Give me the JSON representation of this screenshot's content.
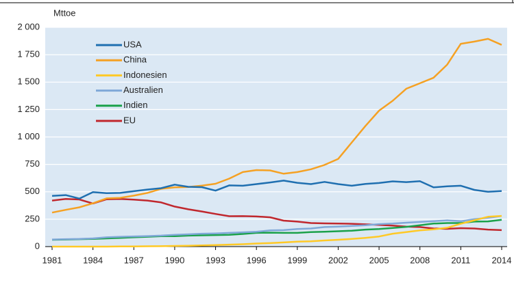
{
  "chart_data": {
    "type": "line",
    "y_label": "Mttoe",
    "x": [
      1981,
      1982,
      1983,
      1984,
      1985,
      1986,
      1987,
      1988,
      1989,
      1990,
      1991,
      1992,
      1993,
      1994,
      1995,
      1996,
      1997,
      1998,
      1999,
      2000,
      2001,
      2002,
      2003,
      2004,
      2005,
      2006,
      2007,
      2008,
      2009,
      2010,
      2011,
      2012,
      2013,
      2014
    ],
    "xlim": [
      1981,
      2014
    ],
    "xticks": [
      1981,
      1984,
      1987,
      1990,
      1993,
      1996,
      1999,
      2002,
      2005,
      2008,
      2011,
      2014
    ],
    "ylim": [
      0,
      2000
    ],
    "yticks": [
      0,
      250,
      500,
      750,
      {
        "value": 1000,
        "label": "1 000"
      },
      {
        "value": 1250,
        "label": "1 250"
      },
      {
        "value": 1500,
        "label": "1 500"
      },
      {
        "value": 1750,
        "label": "1 750"
      },
      {
        "value": 2000,
        "label": "2 000"
      }
    ],
    "grid": true,
    "background": "#dbe8f4",
    "series": [
      {
        "name": "USA",
        "color": "#1f6fb0",
        "values": [
          463,
          470,
          438,
          497,
          487,
          490,
          505,
          520,
          533,
          565,
          545,
          542,
          510,
          558,
          555,
          570,
          585,
          602,
          582,
          570,
          590,
          570,
          555,
          572,
          580,
          595,
          588,
          597,
          540,
          550,
          555,
          517,
          500,
          507
        ]
      },
      {
        "name": "China",
        "color": "#f5a123",
        "values": [
          310,
          335,
          358,
          395,
          440,
          445,
          465,
          490,
          527,
          540,
          543,
          556,
          573,
          620,
          680,
          698,
          695,
          665,
          680,
          705,
          745,
          800,
          950,
          1100,
          1240,
          1330,
          1440,
          1490,
          1540,
          1660,
          1850,
          1870,
          1895,
          1840
        ]
      },
      {
        "name": "Indonesien",
        "color": "#ffc926",
        "values": [
          0,
          0,
          0,
          0,
          0,
          1,
          2,
          3,
          4,
          6,
          8,
          11,
          14,
          18,
          22,
          28,
          32,
          38,
          45,
          48,
          56,
          62,
          70,
          80,
          92,
          118,
          133,
          148,
          157,
          172,
          208,
          240,
          272,
          280
        ]
      },
      {
        "name": "Australien",
        "color": "#7fa8d8",
        "values": [
          65,
          68,
          70,
          75,
          85,
          90,
          93,
          96,
          100,
          108,
          112,
          118,
          120,
          125,
          130,
          135,
          148,
          150,
          160,
          165,
          178,
          182,
          188,
          195,
          205,
          210,
          218,
          225,
          232,
          240,
          232,
          250,
          262,
          280
        ]
      },
      {
        "name": "Indien",
        "color": "#1aa14a",
        "values": [
          62,
          65,
          68,
          70,
          75,
          80,
          85,
          90,
          95,
          95,
          100,
          103,
          105,
          108,
          115,
          125,
          127,
          125,
          125,
          132,
          135,
          140,
          145,
          155,
          160,
          170,
          180,
          195,
          210,
          215,
          215,
          228,
          230,
          245
        ]
      },
      {
        "name": "EU",
        "color": "#c0272d",
        "values": [
          420,
          435,
          430,
          393,
          432,
          435,
          428,
          420,
          403,
          365,
          340,
          320,
          298,
          277,
          278,
          275,
          267,
          237,
          228,
          215,
          212,
          210,
          208,
          203,
          198,
          192,
          182,
          178,
          165,
          162,
          168,
          165,
          155,
          150
        ]
      }
    ]
  }
}
